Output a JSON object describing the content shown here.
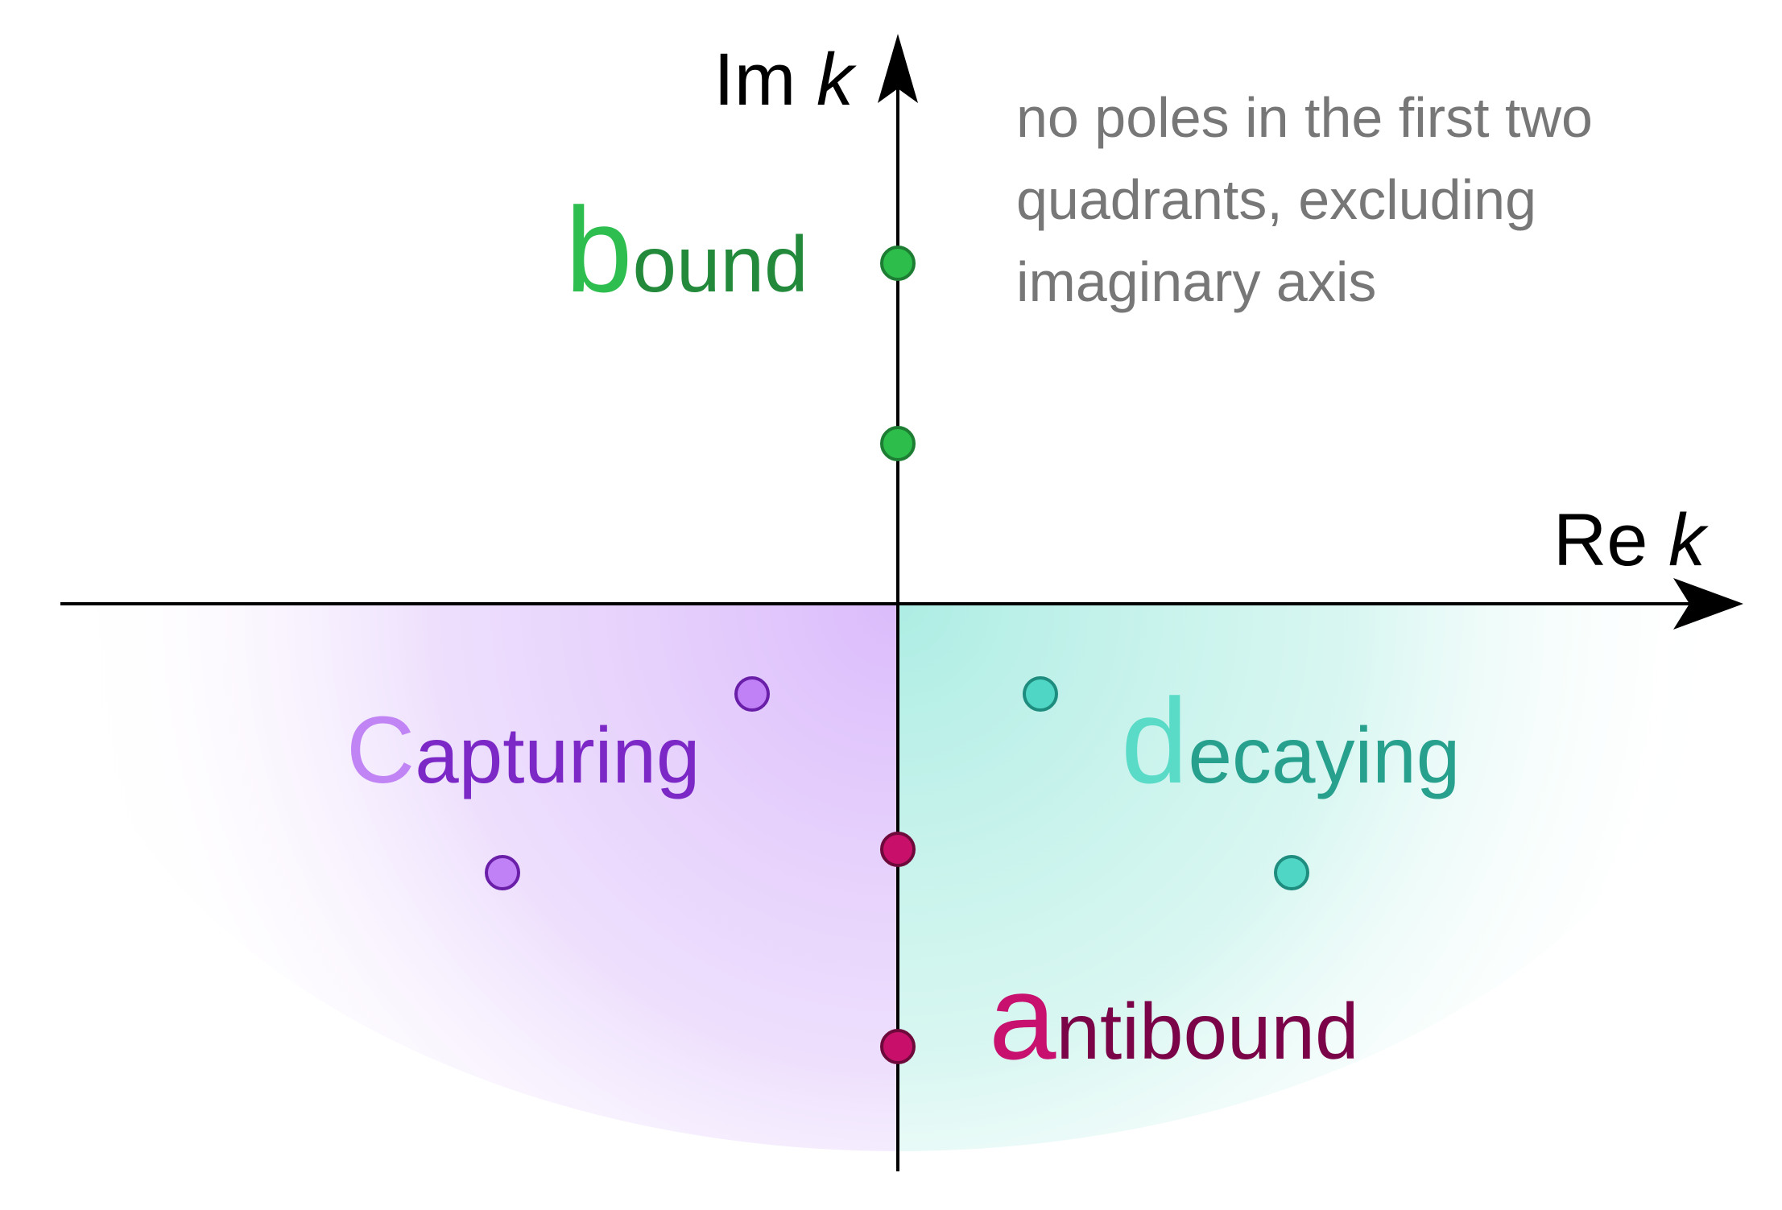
{
  "axes": {
    "imag_label": {
      "prefix": "Im ",
      "var": "k"
    },
    "real_label": {
      "prefix": "Re ",
      "var": "k"
    }
  },
  "note": {
    "lines": [
      "no poles in the first two",
      "quadrants, excluding",
      "imaginary axis"
    ],
    "color": "#777777"
  },
  "categories": [
    {
      "id": "bound",
      "initial": "b",
      "rest": "ound",
      "initial_color": "#2ebd4f",
      "rest_color": "#238a3c"
    },
    {
      "id": "capturing",
      "initial": "C",
      "rest": "apturing",
      "initial_color": "#c184f5",
      "rest_color": "#7c28c6"
    },
    {
      "id": "decaying",
      "initial": "d",
      "rest": "ecaying",
      "initial_color": "#5adbc7",
      "rest_color": "#27a08e"
    },
    {
      "id": "antibound",
      "initial": "a",
      "rest": "ntibound",
      "initial_color": "#c8106e",
      "rest_color": "#7a0447"
    }
  ],
  "poles": [
    {
      "type": "bound",
      "fill": "#2dbd4b",
      "stroke": "#1d7d33"
    },
    {
      "type": "bound",
      "fill": "#2dbd4b",
      "stroke": "#1d7d33"
    },
    {
      "type": "capturing",
      "fill": "#c080f6",
      "stroke": "#6a1fa8"
    },
    {
      "type": "capturing",
      "fill": "#c080f6",
      "stroke": "#6a1fa8"
    },
    {
      "type": "decaying",
      "fill": "#4fd6c4",
      "stroke": "#1e8c7e"
    },
    {
      "type": "decaying",
      "fill": "#4fd6c4",
      "stroke": "#1e8c7e"
    },
    {
      "type": "antibound",
      "fill": "#c8106a",
      "stroke": "#6e0a3b"
    },
    {
      "type": "antibound",
      "fill": "#c8106a",
      "stroke": "#6e0a3b"
    }
  ],
  "region_colors": {
    "capturing": "#d9b8fb",
    "decaying": "#a9ece2"
  }
}
